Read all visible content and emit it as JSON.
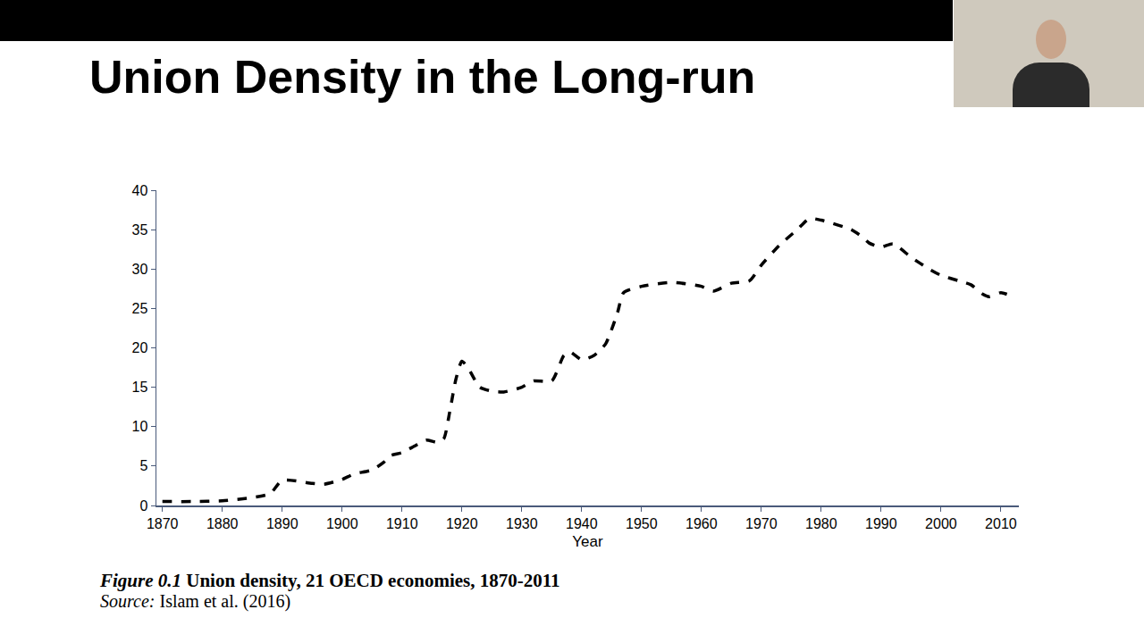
{
  "slide_title": "Union Density in the Long-run",
  "chart_data": {
    "type": "line",
    "x": [
      1870,
      1875,
      1880,
      1885,
      1888,
      1890,
      1895,
      1897,
      1900,
      1902,
      1905,
      1907,
      1908,
      1910,
      1912,
      1914,
      1916,
      1917,
      1918,
      1919,
      1920,
      1921,
      1923,
      1925,
      1927,
      1930,
      1932,
      1935,
      1937,
      1938,
      1940,
      1942,
      1944,
      1946,
      1947,
      1950,
      1955,
      1960,
      1962,
      1965,
      1968,
      1970,
      1973,
      1976,
      1978,
      1980,
      1985,
      1987,
      1988,
      1990,
      1992,
      1995,
      1998,
      2000,
      2003,
      2005,
      2007,
      2008,
      2010,
      2011
    ],
    "values": [
      0.5,
      0.5,
      0.6,
      1.0,
      1.5,
      3.2,
      2.8,
      2.7,
      3.3,
      4.0,
      4.5,
      5.5,
      6.3,
      6.7,
      7.5,
      8.3,
      8.0,
      8.5,
      12.0,
      16.0,
      18.3,
      17.5,
      15.0,
      14.5,
      14.4,
      15.0,
      15.8,
      15.8,
      19.0,
      19.5,
      18.5,
      19.0,
      20.5,
      24.5,
      27.0,
      27.8,
      28.3,
      27.8,
      27.2,
      28.2,
      28.5,
      30.5,
      33.0,
      35.0,
      36.4,
      36.2,
      35.0,
      34.0,
      33.3,
      32.8,
      33.2,
      31.5,
      30.0,
      29.2,
      28.5,
      28.0,
      26.8,
      26.5,
      27.0,
      26.8
    ],
    "color": "#000000",
    "line_style": "dashed",
    "x_label": "Year",
    "xlim": [
      1869,
      2013
    ],
    "xticks": [
      1870,
      1880,
      1890,
      1900,
      1910,
      1920,
      1930,
      1940,
      1950,
      1960,
      1970,
      1980,
      1990,
      2000,
      2010
    ],
    "ylim": [
      0,
      40
    ],
    "yticks": [
      0,
      5,
      10,
      15,
      20,
      25,
      30,
      35,
      40
    ],
    "grid": false
  },
  "caption": {
    "label": "Figure 0.1",
    "text": "Union density, 21 OECD economies, 1870-2011"
  },
  "source": {
    "label": "Source:",
    "text": "Islam et al. (2016)"
  }
}
